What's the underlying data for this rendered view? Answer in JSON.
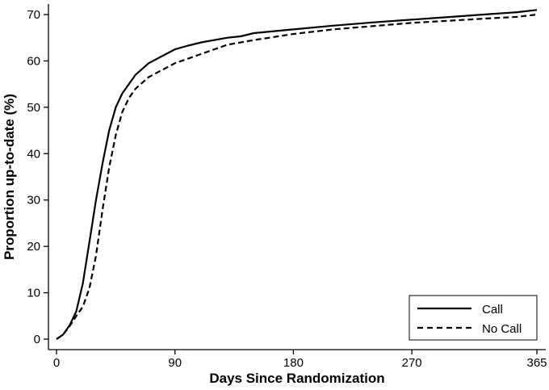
{
  "chart_data": {
    "type": "line",
    "title": "",
    "xlabel": "Days Since Randomization",
    "ylabel": "Proportion up-to-date (%)",
    "xlim": [
      0,
      365
    ],
    "ylim": [
      0,
      72
    ],
    "xticks": [
      0,
      90,
      180,
      270,
      365
    ],
    "yticks": [
      0,
      10,
      20,
      30,
      40,
      50,
      60,
      70
    ],
    "grid": false,
    "legend_position": "bottom-right",
    "series": [
      {
        "name": "Call",
        "style": "solid",
        "color": "#000000",
        "x": [
          0,
          5,
          10,
          15,
          20,
          25,
          30,
          35,
          40,
          45,
          50,
          55,
          60,
          70,
          80,
          90,
          100,
          110,
          120,
          130,
          140,
          150,
          180,
          210,
          240,
          270,
          300,
          330,
          350,
          365
        ],
        "y": [
          0,
          1,
          3,
          6,
          12,
          21,
          30,
          38,
          45,
          50,
          53,
          55,
          57,
          59.5,
          61,
          62.5,
          63.3,
          64,
          64.5,
          65,
          65.3,
          66,
          66.8,
          67.6,
          68.3,
          68.9,
          69.5,
          70.1,
          70.5,
          71
        ]
      },
      {
        "name": "No Call",
        "style": "dashed",
        "color": "#000000",
        "x": [
          0,
          5,
          10,
          15,
          20,
          25,
          30,
          35,
          40,
          45,
          50,
          55,
          60,
          70,
          80,
          90,
          100,
          110,
          120,
          130,
          140,
          150,
          180,
          210,
          240,
          270,
          300,
          330,
          350,
          365
        ],
        "y": [
          0,
          1,
          2.8,
          5,
          7,
          11,
          18,
          28,
          37,
          44,
          49,
          52,
          54,
          56.5,
          58,
          59.5,
          60.5,
          61.5,
          62.5,
          63.5,
          64,
          64.5,
          65.8,
          66.8,
          67.5,
          68.2,
          68.7,
          69.2,
          69.5,
          70
        ]
      }
    ]
  }
}
